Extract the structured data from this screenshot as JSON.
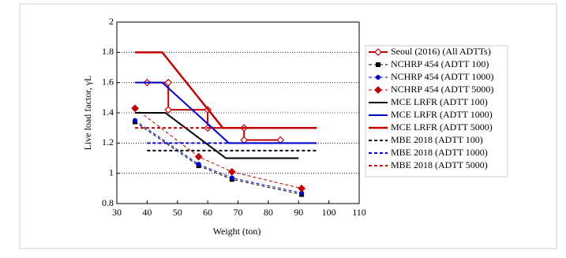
{
  "chart_data": {
    "type": "line",
    "xlabel": "Weight (ton)",
    "ylabel": "Live load factor, γL",
    "xlim": [
      30,
      110
    ],
    "xticks": [
      30,
      40,
      50,
      60,
      70,
      80,
      90,
      100,
      110
    ],
    "ylim": [
      0.8,
      2
    ],
    "yticks": [
      0.8,
      1,
      1.2,
      1.4,
      1.6,
      1.8,
      2
    ],
    "grid": true,
    "legend": "right",
    "series": [
      {
        "name": "Seoul (2016) (All ADTTs)",
        "color": "#c00000",
        "marker": "diamond-open",
        "dash": false,
        "width": 2,
        "x": [
          40,
          47,
          47,
          60,
          60,
          72,
          72,
          84
        ],
        "values": [
          1.6,
          1.6,
          1.42,
          1.42,
          1.3,
          1.3,
          1.22,
          1.22
        ]
      },
      {
        "name": "NCHRP 454 (ADTT 100)",
        "color": "#000000",
        "marker": "square",
        "dash": true,
        "width": 1,
        "x": [
          36,
          57,
          68,
          91
        ],
        "values": [
          1.34,
          1.05,
          0.96,
          0.86
        ]
      },
      {
        "name": "NCHRP 454 (ADTT 1000)",
        "color": "#0000cc",
        "marker": "circle",
        "dash": true,
        "width": 1,
        "x": [
          36,
          57,
          68,
          91
        ],
        "values": [
          1.35,
          1.06,
          0.97,
          0.87
        ]
      },
      {
        "name": "NCHRP 454 (ADTT 5000)",
        "color": "#c00000",
        "marker": "diamond",
        "dash": true,
        "width": 1,
        "x": [
          36,
          57,
          68,
          91
        ],
        "values": [
          1.43,
          1.11,
          1.01,
          0.9
        ]
      },
      {
        "name": "MCE LRFR (ADTT 100)",
        "color": "#000000",
        "marker": null,
        "dash": false,
        "width": 2,
        "x": [
          36,
          46,
          66,
          90
        ],
        "values": [
          1.4,
          1.4,
          1.1,
          1.1
        ]
      },
      {
        "name": "MCE LRFR (ADTT 1000)",
        "color": "#0000cc",
        "marker": null,
        "dash": false,
        "width": 2,
        "x": [
          36,
          45,
          67,
          96
        ],
        "values": [
          1.6,
          1.6,
          1.2,
          1.2
        ]
      },
      {
        "name": "MCE LRFR (ADTT 5000)",
        "color": "#c00000",
        "marker": null,
        "dash": false,
        "width": 2.5,
        "x": [
          36,
          45,
          65,
          96
        ],
        "values": [
          1.8,
          1.8,
          1.3,
          1.3
        ]
      },
      {
        "name": "MBE 2018 (ADTT 100)",
        "color": "#000000",
        "marker": null,
        "dash": true,
        "width": 2,
        "x": [
          40,
          96
        ],
        "values": [
          1.15,
          1.15
        ]
      },
      {
        "name": "MBE 2018 (ADTT 1000)",
        "color": "#0000cc",
        "marker": null,
        "dash": true,
        "width": 2,
        "x": [
          40,
          96
        ],
        "values": [
          1.2,
          1.2
        ]
      },
      {
        "name": "MBE 2018 (ADTT 5000)",
        "color": "#c00000",
        "marker": null,
        "dash": true,
        "width": 2,
        "x": [
          36,
          96
        ],
        "values": [
          1.3,
          1.3
        ]
      }
    ]
  }
}
